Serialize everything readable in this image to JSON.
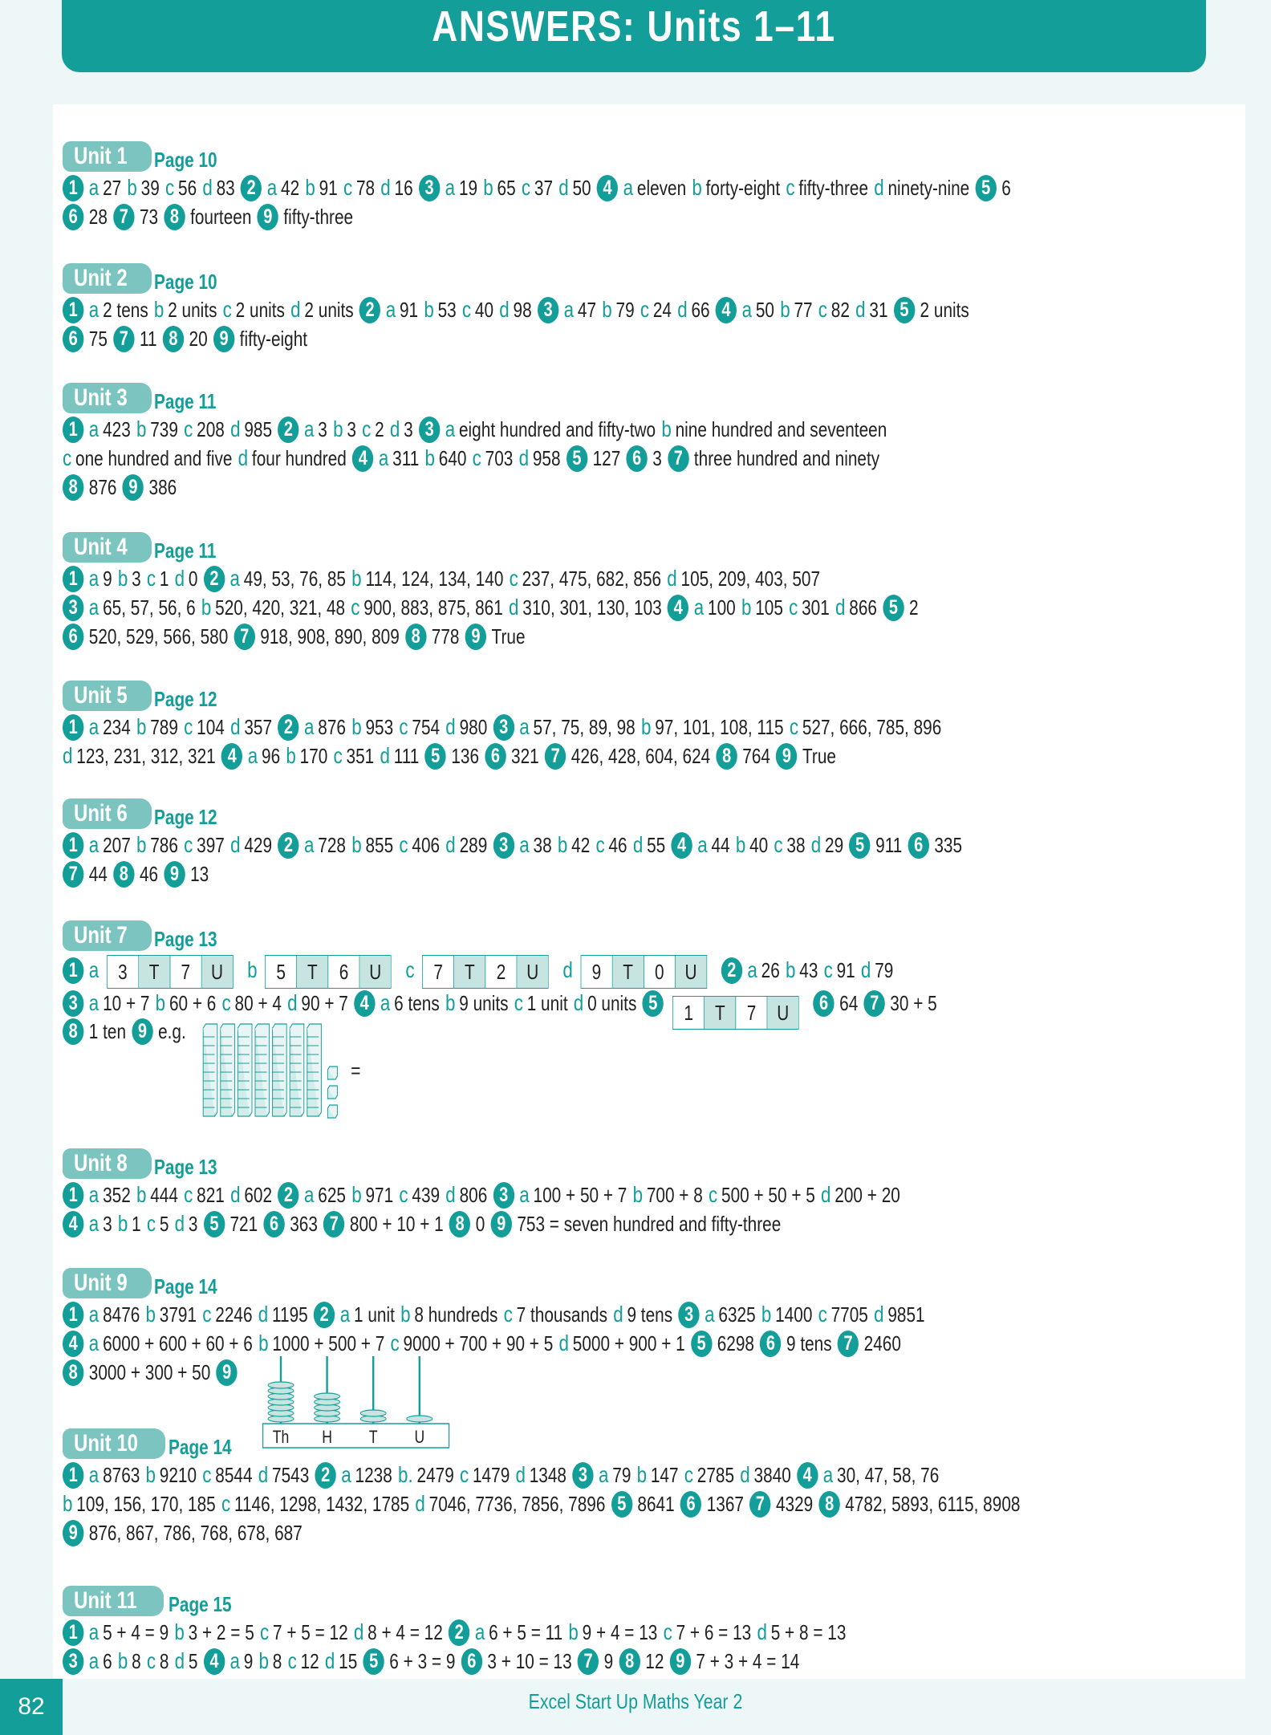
{
  "title": "ANSWERS: Units 1–11",
  "colors": {
    "accent": "#139e9a",
    "pill": "#7cc4c0",
    "shade": "#c8e4e1"
  },
  "tu_labels": {
    "tens": "T",
    "units": "U"
  },
  "blocks": {
    "tens": 7,
    "units": 3,
    "label": "= 73"
  },
  "abacus": {
    "labels": [
      "Th",
      "H",
      "T",
      "U"
    ],
    "beads": [
      7,
      5,
      2,
      1
    ]
  },
  "units": [
    {
      "label": "Unit 1",
      "page": "Page 10",
      "lines": [
        "#1|@a|27|@b|39|@c|56|@d|83|#2|@a|42|@b|91|@c|78|@d|16|#3|@a|19|@b|65|@c|37|@d|50|#4|@a|eleven|@b|forty-eight|@c|fifty-three|@d|ninety-nine|#5|6",
        "#6|28|#7|73|#8|fourteen|#9|fifty-three"
      ]
    },
    {
      "label": "Unit 2",
      "page": "Page 10",
      "lines": [
        "#1|@a|2 tens|@b|2 units|@c|2 units|@d|2 units|#2|@a|91|@b|53|@c|40|@d|98|#3|@a|47|@b|79|@c|24|@d|66|#4|@a|50|@b|77|@c|82|@d|31|#5|2 units",
        "#6|75|#7|11|#8|20|#9|fifty-eight"
      ]
    },
    {
      "label": "Unit 3",
      "page": "Page 11",
      "lines": [
        "#1|@a|423|@b|739|@c|208|@d|985|#2|@a|3|@b|3|@c|2|@d|3|#3|@a|eight hundred and fifty-two|@b|nine hundred and seventeen",
        "@c|one hundred and five|@d|four hundred|#4|@a|311|@b|640|@c|703|@d|958|#5|127|#6|3|#7|three hundred and ninety",
        "#8|876|#9|386"
      ]
    },
    {
      "label": "Unit 4",
      "page": "Page 11",
      "lines": [
        "#1|@a|9|@b|3|@c|1|@d|0|#2|@a|49, 53, 76, 85|@b|114, 124, 134, 140|@c|237, 475, 682, 856|@d|105, 209, 403, 507",
        "#3|@a|65, 57, 56, 6|@b|520, 420, 321, 48|@c|900, 883, 875, 861|@d|310, 301, 130, 103|#4|@a|100|@b|105|@c|301|@d|866|#5|2",
        "#6|520, 529, 566, 580|#7|918, 908, 890, 809|#8|778|#9|True"
      ]
    },
    {
      "label": "Unit 5",
      "page": "Page 12",
      "lines": [
        "#1|@a|234|@b|789|@c|104|@d|357|#2|@a|876|@b|953|@c|754|@d|980|#3|@a|57, 75, 89, 98|@b|97, 101, 108, 115|@c|527, 666, 785, 896",
        "@d|123, 231, 312, 321|#4|@a|96|@b|170|@c|351|@d|111|#5|136|#6|321|#7|426, 428, 604, 624|#8|764|#9|True"
      ]
    },
    {
      "label": "Unit 6",
      "page": "Page 12",
      "lines": [
        "#1|@a|207|@b|786|@c|397|@d|429|#2|@a|728|@b|855|@c|406|@d|289|#3|@a|38|@b|42|@c|46|@d|55|#4|@a|44|@b|40|@c|38|@d|29|#5|911|#6|335",
        "#7|44|#8|46|#9|13"
      ]
    },
    {
      "label": "Unit 7",
      "page": "Page 13",
      "lines": [
        "#1|@a|%3,7|@b|%5,6|@c|%7,2|@d|%9,0|#2|@a|26|@b|43|@c|91|@d|79",
        "#3|@a|10 + 7|@b|60 + 6|@c|80 + 4|@d|90 + 7|#4|@a|6 tens|@b|9 units|@c|1 unit|@d|0 units|#5|!1,7|#6|64|#7|30 + 5",
        "#8|1 ten|#9|e.g.|&blocks"
      ]
    },
    {
      "label": "Unit 8",
      "page": "Page 13",
      "lines": [
        "#1|@a|352|@b|444|@c|821|@d|602|#2|@a|625|@b|971|@c|439|@d|806|#3|@a|100 + 50 + 7|@b|700 + 8|@c|500 + 50 + 5|@d|200 + 20",
        "#4|@a|3|@b|1|@c|5|@d|3|#5|721|#6|363|#7|800 + 10 + 1|#8|0|#9|753 = seven hundred and fifty-three"
      ]
    },
    {
      "label": "Unit 9",
      "page": "Page 14",
      "lines": [
        "#1|@a|8476|@b|3791|@c|2246|@d|1195|#2|@a|1 unit|@b|8 hundreds|@c|7 thousands|@d|9 tens|#3|@a|6325|@b|1400|@c|7705|@d|9851",
        "#4|@a|6000 + 600 + 60 + 6|@b|1000 + 500 + 7|@c|9000 + 700 + 90 + 5|@d|5000 + 900 + 1|#5|6298|#6|9 tens|#7|2460",
        "#8|3000 + 300 + 50|#9|&abacus"
      ]
    },
    {
      "label": "Unit 10",
      "page": "Page 14",
      "lines": [
        "#1|@a|8763|@b|9210|@c|8544|@d|7543|#2|@a|1238|@b.|2479|@c|1479|@d|1348|#3|@a|79|@b|147|@c|2785|@d|3840|#4|@a|30, 47, 58, 76",
        "@b|109, 156, 170, 185|@c|1146, 1298, 1432, 1785|@d|7046, 7736, 7856, 7896|#5|8641|#6|1367|#7|4329|#8|4782, 5893, 6115, 8908",
        "#9|876, 867, 786, 768, 678, 687"
      ]
    },
    {
      "label": "Unit 11",
      "page": "Page 15",
      "lines": [
        "#1|@a|5 + 4 = 9|@b|3 + 2 = 5|@c|7 + 5 = 12|@d|8 + 4 = 12|#2|@a|6 + 5 = 11|@b|9 + 4 = 13|@c|7 + 6 = 13|@d|5 + 8 = 13",
        "#3|@a|6|@b|8|@c|8|@d|5|#4|@a|9|@b|8|@c|12|@d|15|#5|6 + 3 = 9|#6|3 + 10 = 13|#7|9|#8|12|#9|7 + 3 + 4 = 14"
      ]
    }
  ],
  "footer": {
    "page_number": "82",
    "book_title": "Excel Start Up Maths Year 2"
  }
}
